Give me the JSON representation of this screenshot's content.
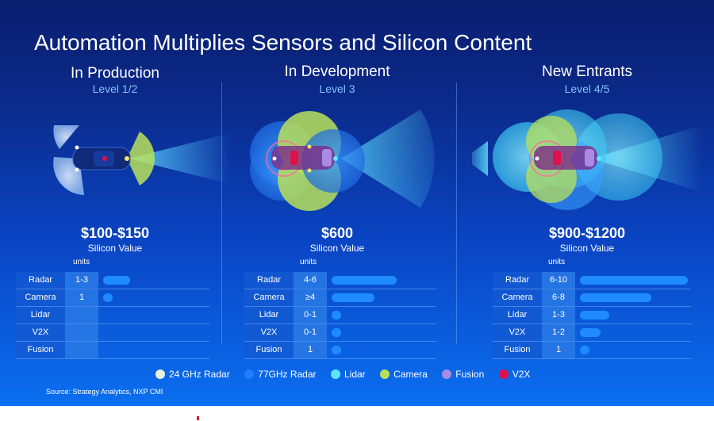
{
  "title": "Automation Multiplies Sensors and Silicon Content",
  "columns": [
    {
      "title": "In Production",
      "level": "Level 1/2",
      "price": "$100-$150",
      "silicon_label": "Silicon Value",
      "units_label": "units",
      "rows": [
        {
          "label": "Radar",
          "value": "1-3",
          "bar": 0.25
        },
        {
          "label": "Camera",
          "value": "1",
          "bar": 0.07
        },
        {
          "label": "Lidar",
          "value": "",
          "bar": 0
        },
        {
          "label": "V2X",
          "value": "",
          "bar": 0
        },
        {
          "label": "Fusion",
          "value": "",
          "bar": 0
        }
      ]
    },
    {
      "title": "In Development",
      "level": "Level 3",
      "price": "$600",
      "silicon_label": "Silicon Value",
      "units_label": "units",
      "rows": [
        {
          "label": "Radar",
          "value": "4-6",
          "bar": 0.6
        },
        {
          "label": "Camera",
          "value": "≥4",
          "bar": 0.4
        },
        {
          "label": "Lidar",
          "value": "0-1",
          "bar": 0.07
        },
        {
          "label": "V2X",
          "value": "0-1",
          "bar": 0.07
        },
        {
          "label": "Fusion",
          "value": "1",
          "bar": 0.07
        }
      ]
    },
    {
      "title": "New Entrants",
      "level": "Level 4/5",
      "price": "$900-$1200",
      "silicon_label": "Silicon Value",
      "units_label": "units",
      "rows": [
        {
          "label": "Radar",
          "value": "6-10",
          "bar": 1.0
        },
        {
          "label": "Camera",
          "value": "6-8",
          "bar": 0.66
        },
        {
          "label": "Lidar",
          "value": "1-3",
          "bar": 0.27
        },
        {
          "label": "V2X",
          "value": "1-2",
          "bar": 0.19
        },
        {
          "label": "Fusion",
          "value": "1",
          "bar": 0.07
        }
      ]
    }
  ],
  "legend": [
    {
      "label": "24 GHz Radar",
      "color": "#e6f3e0"
    },
    {
      "label": "77GHz Radar",
      "color": "#1f7dff"
    },
    {
      "label": "Lidar",
      "color": "#5ee6ff"
    },
    {
      "label": "Camera",
      "color": "#b8e05a"
    },
    {
      "label": "Fusion",
      "color": "#a98be6"
    },
    {
      "label": "V2X",
      "color": "#e0104a"
    }
  ],
  "source": "Source: Strategy Analytics, NXP CMI"
}
